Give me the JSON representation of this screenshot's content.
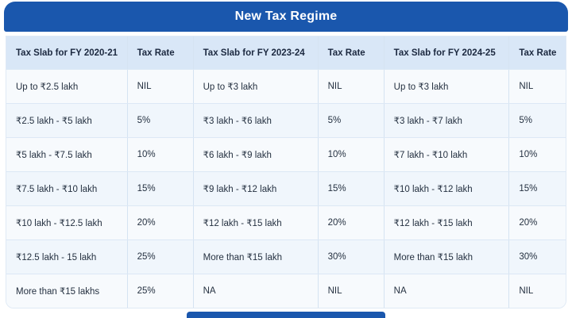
{
  "title": "New Tax Regime",
  "colors": {
    "primary_blue": "#1a57ad",
    "header_row_bg": "#d9e7f7",
    "row_bg_light": "#f7fafd",
    "row_bg_tint": "#f0f6fc",
    "grid_line": "#d5e3f2",
    "text": "#253141"
  },
  "chart_data": {
    "type": "table",
    "title": "New Tax Regime",
    "columns": [
      "Tax Slab for FY 2020-21",
      "Tax Rate",
      "Tax Slab for FY 2023-24",
      "Tax Rate",
      "Tax Slab for FY 2024-25",
      "Tax Rate"
    ],
    "rows": [
      [
        "Up to ₹2.5 lakh",
        "NIL",
        "Up to ₹3 lakh",
        "NIL",
        "Up to ₹3 lakh",
        "NIL"
      ],
      [
        "₹2.5 lakh - ₹5 lakh",
        "5%",
        "₹3 lakh - ₹6 lakh",
        "5%",
        "₹3 lakh - ₹7 lakh",
        "5%"
      ],
      [
        "₹5 lakh - ₹7.5 lakh",
        "10%",
        "₹6 lakh - ₹9 lakh",
        "10%",
        "₹7 lakh - ₹10 lakh",
        "10%"
      ],
      [
        "₹7.5 lakh - ₹10 lakh",
        "15%",
        "₹9 lakh - ₹12 lakh",
        "15%",
        "₹10 lakh - ₹12 lakh",
        "15%"
      ],
      [
        "₹10 lakh - ₹12.5 lakh",
        "20%",
        "₹12 lakh - ₹15 lakh",
        "20%",
        "₹12 lakh - ₹15 lakh",
        "20%"
      ],
      [
        "₹12.5 lakh - 15 lakh",
        "25%",
        "More than ₹15 lakh",
        "30%",
        "More than ₹15 lakh",
        "30%"
      ],
      [
        "More than ₹15 lakhs",
        "25%",
        "NA",
        "NIL",
        "NA",
        "NIL"
      ]
    ]
  }
}
